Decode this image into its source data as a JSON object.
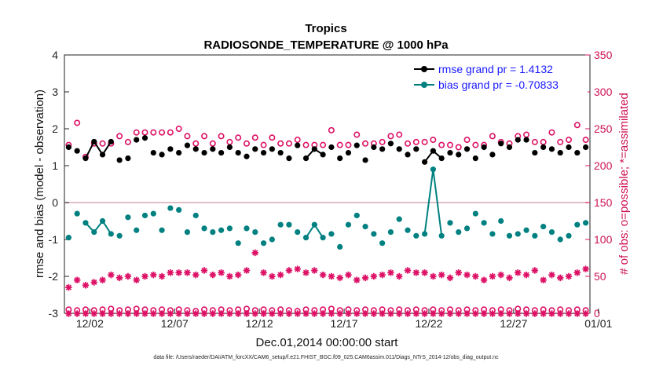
{
  "chart_data": {
    "type": "line",
    "title": "Tropics",
    "subtitle": "RADIOSONDE_TEMPERATURE @ 1000 hPa",
    "xlabel": "Dec.01,2014 00:00:00 start",
    "ylabel_left": "rmse and bias (model - observation)",
    "ylabel_right": "# of obs: o=possible; *=assimilated",
    "footnote": "data file: /Users/raeder/DAI/ATM_forcXX/CAM6_setup/f.e21.FHIST_BGC.f09_025.CAM6assim.011/Diags_NTrS_2014-12/obs_diag_output.nc",
    "xlim": [
      0.5,
      31.5
    ],
    "ylim_left": [
      -3,
      4
    ],
    "ylim_right": [
      0,
      350
    ],
    "x_tick_values": [
      2,
      7,
      12,
      17,
      22,
      27,
      32
    ],
    "x_tick_labels": [
      "12/02",
      "12/07",
      "12/12",
      "12/17",
      "12/22",
      "12/27",
      "01/01"
    ],
    "y_left_ticks": [
      -3,
      -2,
      -1,
      0,
      1,
      2,
      3,
      4
    ],
    "y_right_ticks": [
      0,
      50,
      100,
      150,
      200,
      250,
      300,
      350
    ],
    "legend": {
      "location": "top-right",
      "entries": [
        {
          "label": "rmse grand pr = 1.4132",
          "color": "#000000"
        },
        {
          "label": "bias grand pr = -0.70833",
          "color": "#008080"
        }
      ]
    },
    "colors": {
      "rmse": "#000000",
      "bias": "#008080",
      "counts": "#dd1166",
      "zero_line": "#d9a6b3"
    },
    "x": [
      0.75,
      1.25,
      1.75,
      2.25,
      2.75,
      3.25,
      3.75,
      4.25,
      4.75,
      5.25,
      5.75,
      6.25,
      6.75,
      7.25,
      7.75,
      8.25,
      8.75,
      9.25,
      9.75,
      10.25,
      10.75,
      11.25,
      11.75,
      12.25,
      12.75,
      13.25,
      13.75,
      14.25,
      14.75,
      15.25,
      15.75,
      16.25,
      16.75,
      17.25,
      17.75,
      18.25,
      18.75,
      19.25,
      19.75,
      20.25,
      20.75,
      21.25,
      21.75,
      22.25,
      22.75,
      23.25,
      23.75,
      24.25,
      24.75,
      25.25,
      25.75,
      26.25,
      26.75,
      27.25,
      27.75,
      28.25,
      28.75,
      29.25,
      29.75,
      30.25,
      30.75,
      31.25
    ],
    "series": [
      {
        "name": "rmse",
        "marker": "filled-circle",
        "values": [
          1.5,
          1.4,
          1.2,
          1.65,
          1.3,
          1.65,
          1.15,
          1.2,
          1.7,
          1.75,
          1.35,
          1.3,
          1.45,
          1.35,
          1.55,
          1.45,
          1.35,
          1.45,
          1.35,
          1.5,
          1.35,
          1.25,
          1.45,
          1.35,
          1.45,
          1.35,
          1.2,
          1.55,
          1.2,
          1.45,
          1.3,
          1.5,
          1.2,
          1.35,
          1.55,
          1.15,
          1.5,
          1.45,
          1.6,
          1.45,
          1.3,
          1.45,
          1.1,
          1.4,
          1.2,
          1.35,
          1.3,
          1.45,
          1.2,
          1.5,
          1.3,
          1.6,
          1.5,
          1.7,
          1.7,
          1.35,
          1.5,
          1.45,
          1.35,
          1.5,
          1.35,
          1.5
        ],
        "connected_runs": [
          [
            2,
            5
          ],
          [
            28,
            30
          ],
          [
            42,
            44
          ]
        ]
      },
      {
        "name": "bias",
        "marker": "filled-circle",
        "values": [
          -0.95,
          -0.3,
          -0.55,
          -0.8,
          -0.5,
          -0.85,
          -0.9,
          -0.4,
          -0.75,
          -0.35,
          -0.3,
          -0.75,
          -0.15,
          -0.2,
          -0.8,
          -0.35,
          -0.7,
          -0.8,
          -0.75,
          -0.7,
          -1.1,
          -0.7,
          -0.8,
          -1.1,
          -1.0,
          -0.6,
          -0.6,
          -0.8,
          -0.95,
          -0.6,
          -0.95,
          -0.85,
          -1.2,
          -0.6,
          -0.35,
          -0.65,
          -0.85,
          -1.1,
          -0.8,
          -0.45,
          -0.75,
          -0.9,
          -0.85,
          0.9,
          -0.9,
          -0.55,
          -0.8,
          -0.7,
          -0.3,
          -0.55,
          -0.85,
          -0.5,
          -0.9,
          -0.85,
          -0.75,
          -0.9,
          -0.65,
          -0.8,
          -1.0,
          -0.9,
          -0.6,
          -0.55
        ],
        "connected_runs": [
          [
            2,
            5
          ],
          [
            28,
            30
          ],
          [
            42,
            44
          ]
        ]
      },
      {
        "name": "possible",
        "marker": "open-circle",
        "values": [
          5,
          4,
          5,
          4,
          5,
          6,
          4,
          5,
          6,
          5,
          4,
          5,
          4,
          5,
          4,
          3,
          5,
          4,
          5,
          4,
          5,
          6,
          4,
          5,
          4,
          5,
          4,
          3,
          5,
          4,
          5,
          6,
          4,
          5,
          4,
          5,
          4,
          5,
          4,
          5,
          4,
          5,
          4,
          5,
          4,
          5,
          4,
          5,
          4,
          5,
          4,
          5,
          4,
          6,
          5,
          4,
          5,
          4,
          5,
          4,
          5,
          4
        ],
        "note": "second row of open circles near top",
        "top_values": [
          228,
          258,
          212,
          230,
          230,
          230,
          240,
          232,
          245,
          245,
          245,
          245,
          245,
          250,
          240,
          230,
          240,
          230,
          240,
          232,
          238,
          230,
          238,
          228,
          238,
          230,
          230,
          235,
          228,
          228,
          228,
          248,
          228,
          228,
          242,
          230,
          230,
          232,
          240,
          242,
          230,
          232,
          232,
          235,
          228,
          228,
          225,
          235,
          228,
          228,
          240,
          232,
          230,
          240,
          242,
          232,
          232,
          245,
          232,
          235,
          255,
          235
        ]
      },
      {
        "name": "assimilated",
        "marker": "asterisk",
        "values": [
          35,
          45,
          38,
          42,
          45,
          52,
          48,
          50,
          45,
          50,
          52,
          50,
          55,
          55,
          55,
          52,
          58,
          52,
          55,
          50,
          52,
          58,
          82,
          55,
          50,
          52,
          58,
          60,
          55,
          58,
          52,
          50,
          48,
          52,
          45,
          48,
          50,
          52,
          55,
          50,
          58,
          55,
          55,
          50,
          52,
          48,
          55,
          52,
          50,
          45,
          50,
          52,
          48,
          55,
          52,
          58,
          45,
          52,
          48,
          50,
          55,
          60
        ]
      }
    ]
  }
}
